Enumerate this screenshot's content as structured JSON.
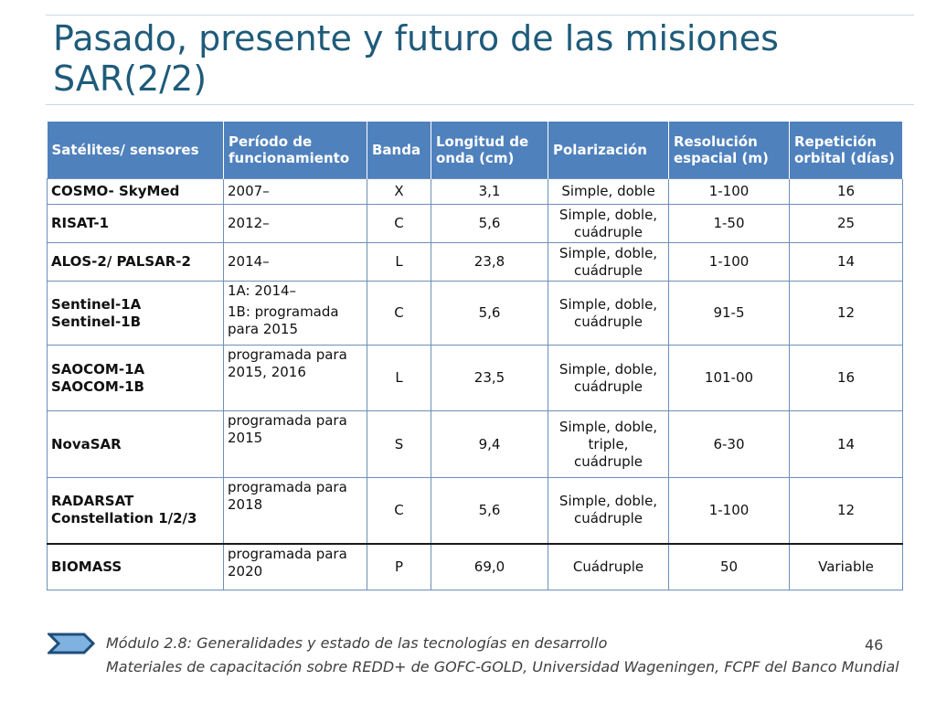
{
  "slide": {
    "title": "Pasado, presente y futuro de las misiones SAR(2/2)",
    "page_number": "46",
    "footer_line1": "Módulo 2.8: Generalidades y estado de las tecnologías en desarrollo",
    "footer_line2": "Materiales de capacitación sobre REDD+ de GOFC-GOLD, Universidad Wageningen, FCPF del Banco Mundial"
  },
  "table": {
    "headers": [
      "Satélites/ sensores",
      "Período de funcionamiento",
      "Banda",
      "Longitud de onda (cm)",
      "Polarización",
      "Resolución espacial (m)",
      "Repetición orbital (días)"
    ],
    "rows": [
      {
        "sat": [
          "COSMO- SkyMed"
        ],
        "period": [
          "2007–"
        ],
        "band": "X",
        "wavelength": "3,1",
        "polarization": [
          "Simple, doble"
        ],
        "resolution": "1-100",
        "repeat": "16"
      },
      {
        "sat": [
          "RISAT-1"
        ],
        "period": [
          "2012–"
        ],
        "band": "C",
        "wavelength": "5,6",
        "polarization": [
          "Simple, doble,",
          "cuádruple"
        ],
        "resolution": "1-50",
        "repeat": "25"
      },
      {
        "sat": [
          "ALOS-2/ PALSAR-2"
        ],
        "period": [
          "2014–"
        ],
        "band": "L",
        "wavelength": "23,8",
        "polarization": [
          "Simple, doble,",
          "cuádruple"
        ],
        "resolution": "1-100",
        "repeat": "14"
      },
      {
        "sat": [
          "Sentinel-1A",
          "Sentinel-1B"
        ],
        "period": [
          "1A: 2014–",
          "1B: programada",
          "para 2015"
        ],
        "band": "C",
        "wavelength": "5,6",
        "polarization": [
          "Simple, doble,",
          "cuádruple"
        ],
        "resolution": "91-5",
        "repeat": "12"
      },
      {
        "sat": [
          "SAOCOM-1A",
          "SAOCOM-1B"
        ],
        "period": [
          "programada para",
          "2015, 2016"
        ],
        "band": "L",
        "wavelength": "23,5",
        "polarization": [
          "Simple, doble,",
          "cuádruple"
        ],
        "resolution": "101-00",
        "repeat": "16"
      },
      {
        "sat": [
          "NovaSAR"
        ],
        "period": [
          "programada para",
          "2015"
        ],
        "band": "S",
        "wavelength": "9,4",
        "polarization": [
          "Simple, doble,",
          "triple,",
          "cuádruple"
        ],
        "resolution": "6-30",
        "repeat": "14"
      },
      {
        "sat": [
          "RADARSAT",
          "Constellation 1/2/3"
        ],
        "period": [
          "programada para",
          "2018"
        ],
        "band": "C",
        "wavelength": "5,6",
        "polarization": [
          "Simple, doble,",
          "cuádruple"
        ],
        "resolution": "1-100",
        "repeat": "12"
      },
      {
        "sat": [
          "BIOMASS"
        ],
        "period": [
          "programada para",
          "2020"
        ],
        "band": "P",
        "wavelength": "69,0",
        "polarization": [
          "Cuádruple"
        ],
        "resolution": "50",
        "repeat": "Variable"
      }
    ]
  },
  "colors": {
    "title": "#1f5b7a",
    "header_bg": "#4f81bd",
    "arrow_fill": "#7fb2e0",
    "arrow_stroke": "#1f4e79"
  },
  "icons": {
    "footer_arrow": "chevron-arrow-icon"
  }
}
